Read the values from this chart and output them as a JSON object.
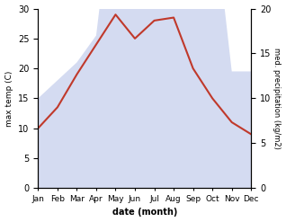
{
  "months": [
    "Jan",
    "Feb",
    "Mar",
    "Apr",
    "May",
    "Jun",
    "Jul",
    "Aug",
    "Sep",
    "Oct",
    "Nov",
    "Dec"
  ],
  "month_x": [
    0,
    1,
    2,
    3,
    4,
    5,
    6,
    7,
    8,
    9,
    10,
    11
  ],
  "temp": [
    10.0,
    13.5,
    19.0,
    24.0,
    29.0,
    25.0,
    28.0,
    28.5,
    20.0,
    15.0,
    11.0,
    9.0
  ],
  "precip_kg": [
    10,
    12,
    14,
    17,
    35,
    27,
    35,
    32,
    22,
    32,
    13,
    13
  ],
  "temp_color": "#c0392b",
  "precip_fill_color": "#b8c4e8",
  "precip_fill_alpha": 0.6,
  "ylabel_left": "max temp (C)",
  "ylabel_right": "med. precipitation (kg/m2)",
  "xlabel": "date (month)",
  "ylim_left": [
    0,
    30
  ],
  "ylim_right": [
    0,
    20
  ],
  "left_ticks": [
    0,
    5,
    10,
    15,
    20,
    25,
    30
  ],
  "right_ticks": [
    0,
    5,
    10,
    15,
    20
  ],
  "bg_color": "#ffffff"
}
